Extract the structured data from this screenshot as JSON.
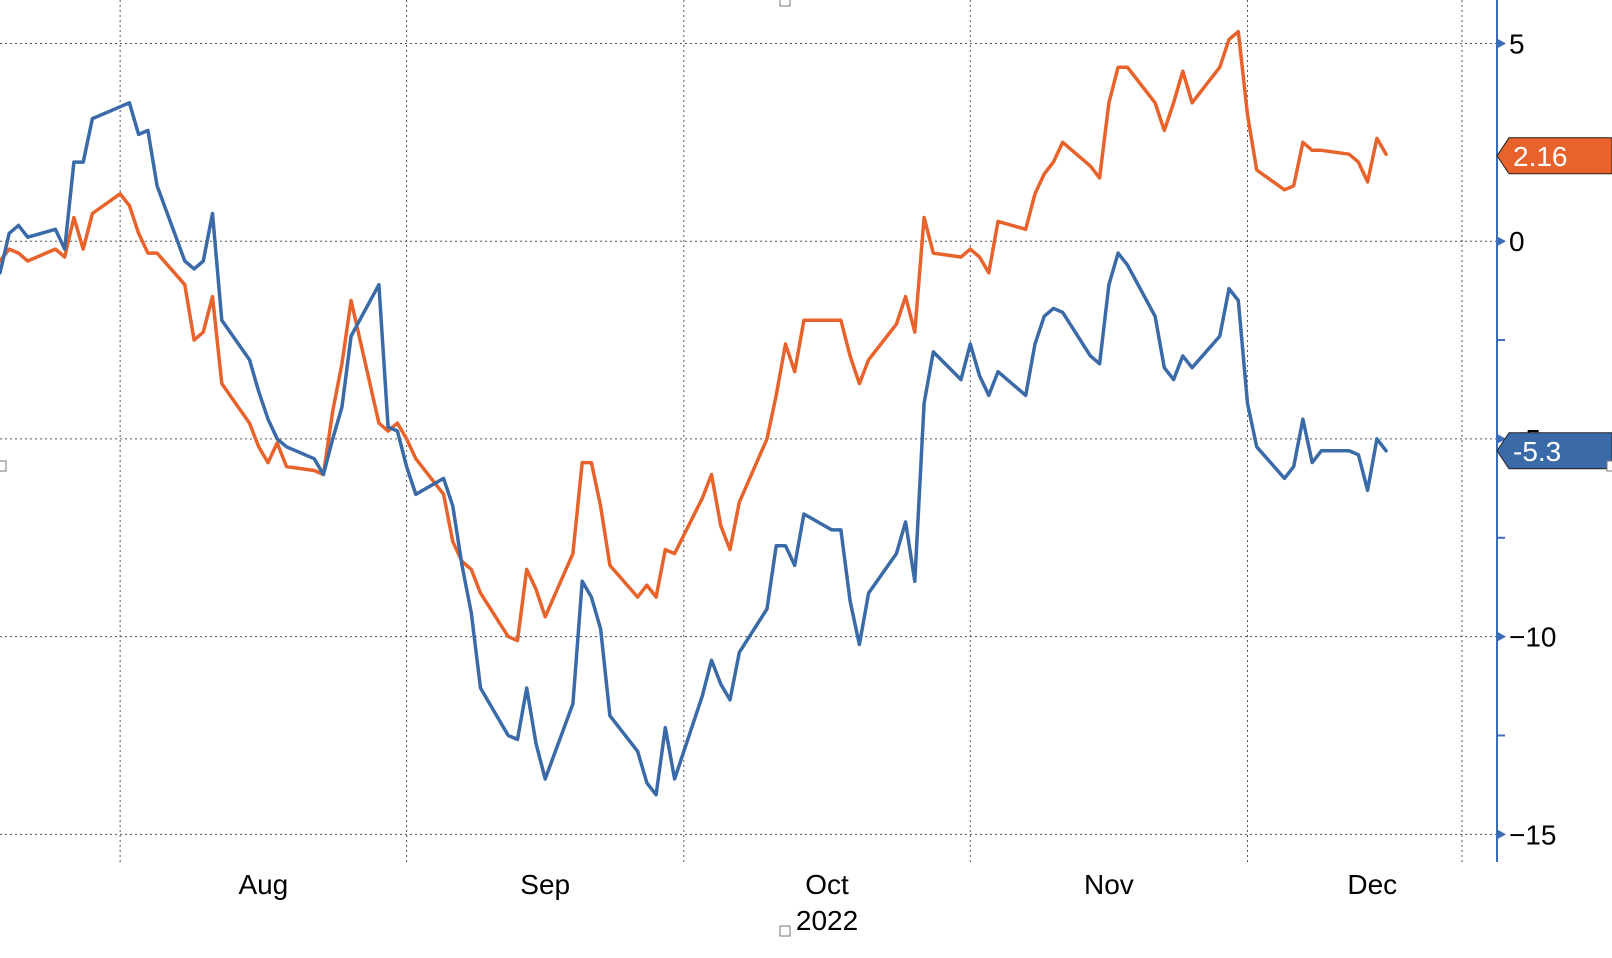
{
  "chart_data": {
    "type": "line",
    "x_labels": [
      {
        "text": "Aug",
        "date": "2022-08-01"
      },
      {
        "text": "Sep",
        "date": "2022-09-01"
      },
      {
        "text": "Oct",
        "date": "2022-10-01"
      },
      {
        "text": "Nov",
        "date": "2022-11-01"
      },
      {
        "text": "Dec",
        "date": "2022-12-01"
      }
    ],
    "x_sublabel": "2022",
    "x_range": [
      "2022-07-19",
      "2022-12-28"
    ],
    "y_axis": {
      "position": "right",
      "ylim": [
        -15.7,
        6.1
      ],
      "labeled_ticks": [
        5,
        0,
        -5,
        -10,
        -15
      ],
      "minor_ticks": [
        -2.5,
        -7.5,
        -12.5
      ],
      "grid": true
    },
    "x_grid_dates": [
      "2022-08-01",
      "2022-09-01",
      "2022-10-01",
      "2022-11-01",
      "2022-12-01"
    ],
    "series": [
      {
        "color": "#e8632b",
        "last_value_label": "2.16",
        "start_date": "2022-07-18",
        "values": [
          -0.2,
          -0.5,
          -0.2,
          -0.3,
          -0.5,
          -0.2,
          -0.4,
          0.6,
          -0.2,
          0.7,
          1.2,
          0.9,
          0.2,
          -0.3,
          -0.3,
          -1.1,
          -2.5,
          -2.3,
          -1.4,
          -3.6,
          -4.6,
          -5.2,
          -5.6,
          -5.1,
          -5.7,
          -5.8,
          -5.9,
          -4.3,
          -3.1,
          -1.5,
          -4.6,
          -4.8,
          -4.6,
          -5.0,
          -5.5,
          -6.4,
          -7.6,
          -8.1,
          -8.3,
          -8.9,
          -10.0,
          -10.1,
          -8.3,
          -8.8,
          -9.5,
          -7.9,
          -5.6,
          -5.6,
          -6.7,
          -8.2,
          -9.0,
          -8.7,
          -9.0,
          -7.8,
          -7.9,
          -6.5,
          -5.9,
          -7.2,
          -7.8,
          -6.6,
          -5.0,
          -3.9,
          -2.6,
          -3.3,
          -2.0,
          -2.0,
          -2.0,
          -2.9,
          -3.6,
          -3.0,
          -2.1,
          -1.4,
          -2.3,
          0.6,
          -0.3,
          -0.4,
          -0.2,
          -0.4,
          -0.8,
          0.5,
          0.3,
          1.2,
          1.7,
          2.0,
          2.5,
          1.9,
          1.6,
          3.5,
          4.4,
          4.4,
          3.5,
          2.8,
          3.5,
          4.3,
          3.5,
          4.4,
          5.1,
          5.3,
          3.2,
          1.8,
          1.3,
          1.4,
          2.5,
          2.3,
          2.3,
          2.2,
          2.0,
          1.5,
          2.6,
          2.2
        ]
      },
      {
        "color": "#3a6aa8",
        "last_value_label": "-5.3",
        "start_date": "2022-07-18",
        "values": [
          -0.3,
          -0.8,
          0.2,
          0.4,
          0.1,
          0.3,
          -0.2,
          2.0,
          2.0,
          3.1,
          3.4,
          3.5,
          2.7,
          2.8,
          1.4,
          -0.5,
          -0.7,
          -0.5,
          0.7,
          -2.0,
          -3.0,
          -3.8,
          -4.5,
          -5.0,
          -5.2,
          -5.5,
          -5.9,
          -5.0,
          -4.2,
          -2.4,
          -1.1,
          -4.7,
          -4.8,
          -5.7,
          -6.4,
          -6.0,
          -6.7,
          -8.2,
          -9.4,
          -11.3,
          -12.5,
          -12.6,
          -11.3,
          -12.7,
          -13.6,
          -11.7,
          -8.6,
          -9.0,
          -9.8,
          -12.0,
          -12.9,
          -13.7,
          -14.0,
          -12.3,
          -13.6,
          -11.5,
          -10.6,
          -11.2,
          -11.6,
          -10.4,
          -9.3,
          -7.7,
          -7.7,
          -8.2,
          -6.9,
          -7.3,
          -7.3,
          -9.1,
          -10.2,
          -8.9,
          -7.9,
          -7.1,
          -8.6,
          -4.1,
          -2.8,
          -3.5,
          -2.6,
          -3.4,
          -3.9,
          -3.3,
          -3.9,
          -2.6,
          -1.9,
          -1.7,
          -1.8,
          -2.9,
          -3.1,
          -1.1,
          -0.3,
          -0.6,
          -1.9,
          -3.2,
          -3.5,
          -2.9,
          -3.2,
          -2.4,
          -1.2,
          -1.5,
          -4.1,
          -5.2,
          -6.0,
          -5.7,
          -4.5,
          -5.6,
          -5.3,
          -5.3,
          -5.4,
          -6.3,
          -5.0,
          -5.3
        ]
      }
    ]
  }
}
